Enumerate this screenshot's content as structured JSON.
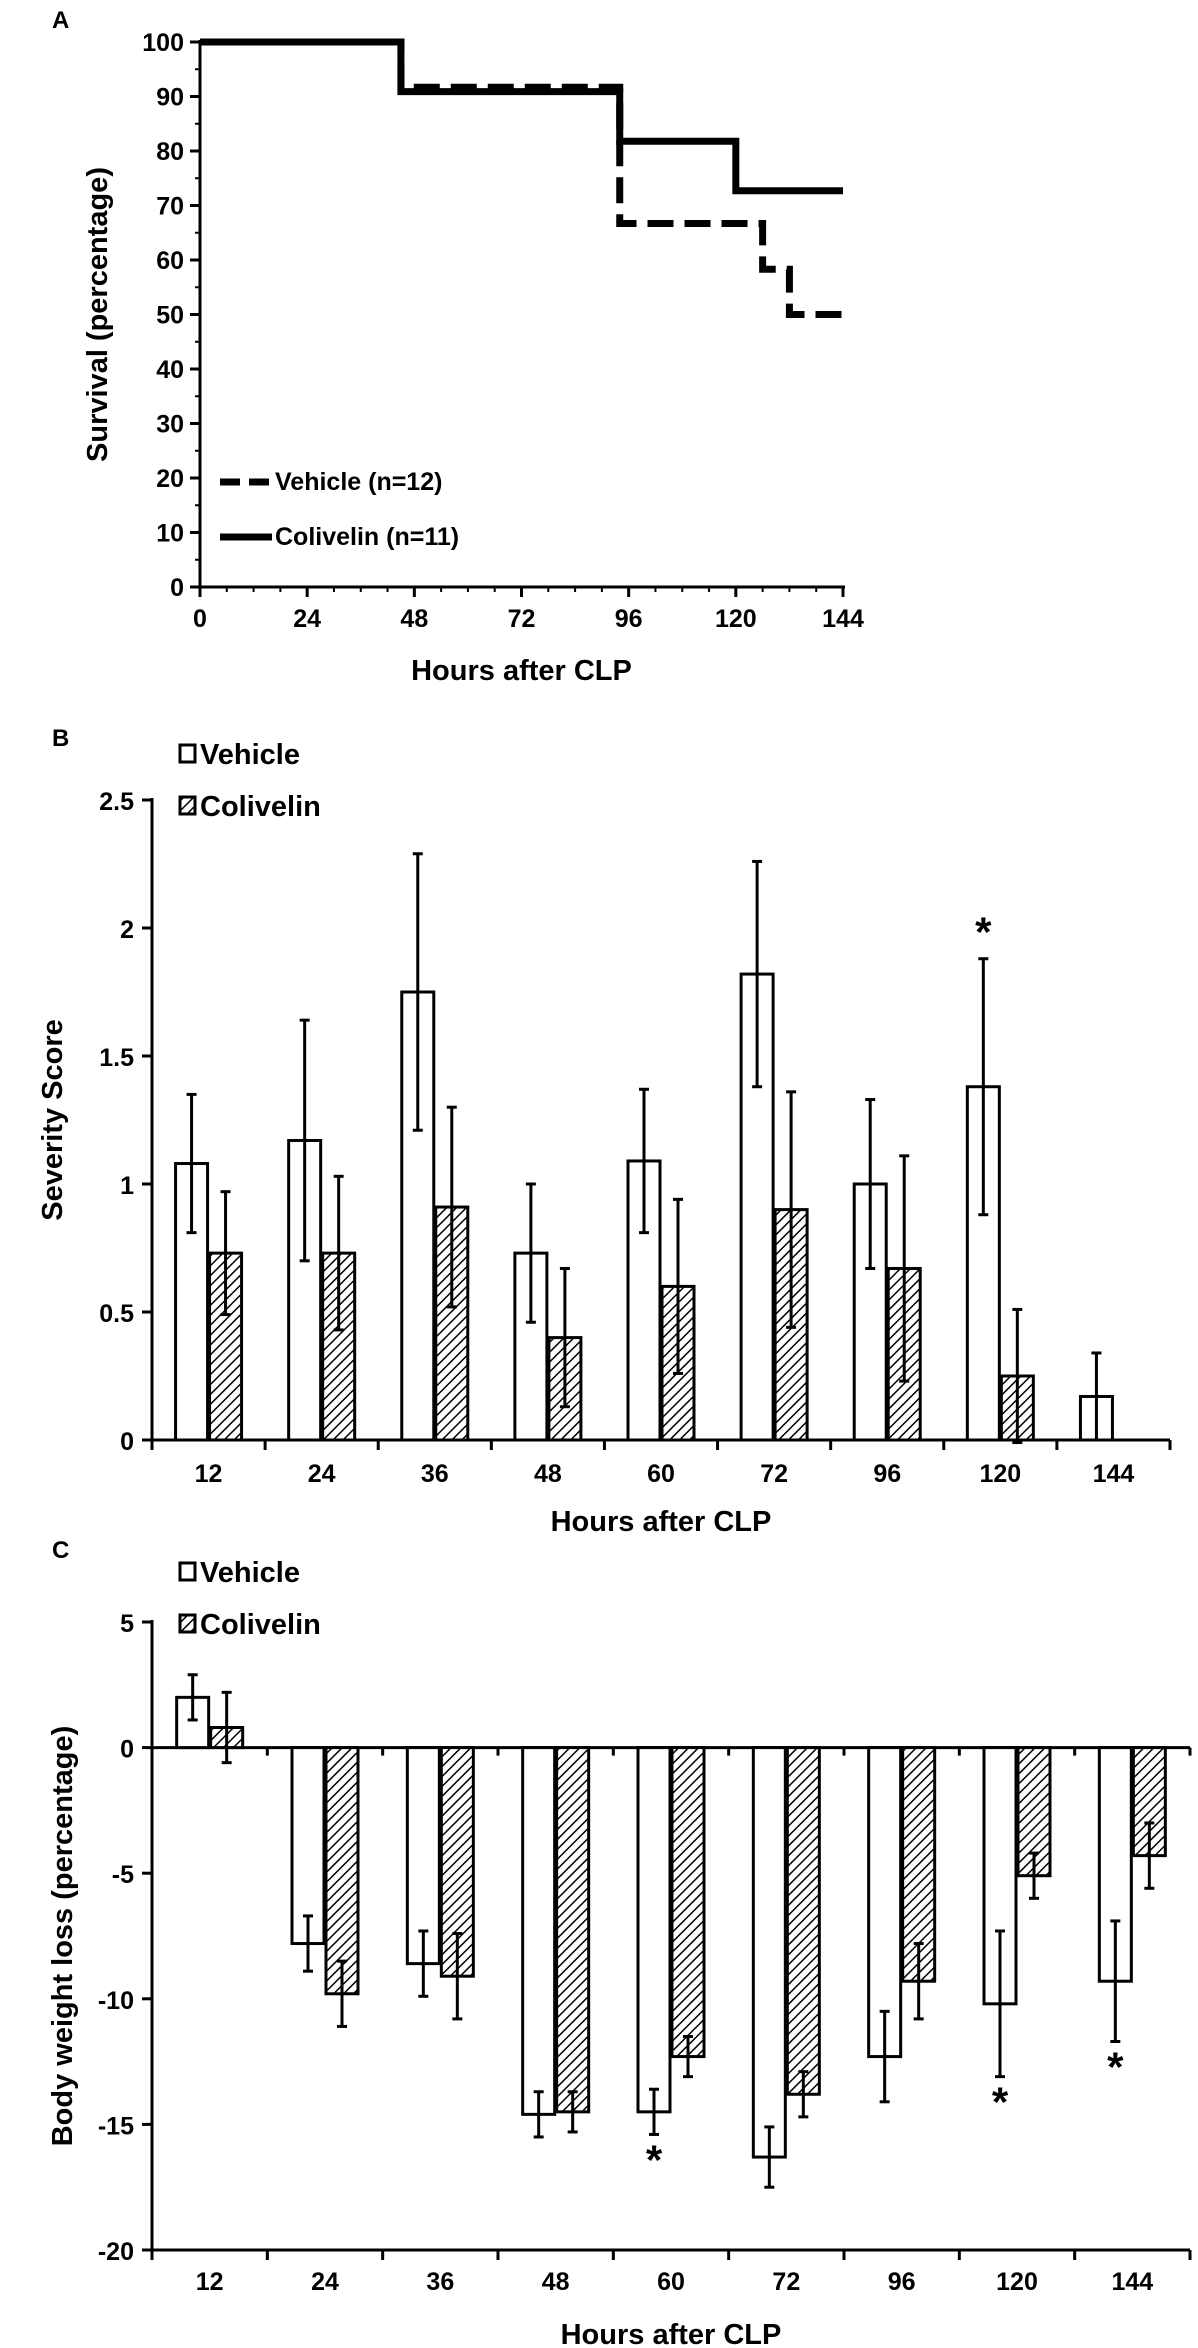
{
  "chart_data": [
    {
      "panel": "A",
      "type": "line",
      "step": true,
      "xlabel": "Hours after CLP",
      "ylabel": "Survival (percentage)",
      "xlim": [
        0,
        144
      ],
      "ylim": [
        0,
        100
      ],
      "xticks": [
        0,
        24,
        48,
        72,
        96,
        120,
        144
      ],
      "yticks": [
        0,
        10,
        20,
        30,
        40,
        50,
        60,
        70,
        80,
        90,
        100
      ],
      "legend_position": "bottom-left",
      "series": [
        {
          "name": "Vehicle (n=12)",
          "style": "dashed",
          "x": [
            0,
            45,
            45,
            94,
            94,
            126,
            126,
            132,
            132,
            144
          ],
          "y": [
            100,
            100,
            91.7,
            91.7,
            66.7,
            66.7,
            58.3,
            58.3,
            50,
            50
          ]
        },
        {
          "name": "Colivelin (n=11)",
          "style": "solid",
          "x": [
            0,
            45,
            45,
            94,
            94,
            120,
            120,
            144
          ],
          "y": [
            100,
            100,
            90.9,
            90.9,
            81.8,
            81.8,
            72.7,
            72.7
          ]
        }
      ]
    },
    {
      "panel": "B",
      "type": "bar",
      "xlabel": "Hours after CLP",
      "ylabel": "Severity Score",
      "ylim": [
        0,
        2.5
      ],
      "yticks": [
        "0",
        "0.5",
        "1",
        "1.5",
        "2",
        "2.5"
      ],
      "legend_position": "top-left",
      "categories": [
        "12",
        "24",
        "36",
        "48",
        "60",
        "72",
        "96",
        "120",
        "144"
      ],
      "series": [
        {
          "name": "Vehicle",
          "pattern": "open",
          "values": [
            1.08,
            1.17,
            1.75,
            0.73,
            1.09,
            1.82,
            1.0,
            1.38,
            0.17
          ],
          "errors": [
            0.27,
            0.47,
            0.54,
            0.27,
            0.28,
            0.44,
            0.33,
            0.5,
            0.17
          ]
        },
        {
          "name": "Colivelin",
          "pattern": "hatched",
          "values": [
            0.73,
            0.73,
            0.91,
            0.4,
            0.6,
            0.9,
            0.67,
            0.25,
            0
          ],
          "errors": [
            0.24,
            0.3,
            0.39,
            0.27,
            0.34,
            0.46,
            0.44,
            0.26,
            0
          ]
        }
      ],
      "annotations": [
        {
          "text": "*",
          "category": "120"
        }
      ]
    },
    {
      "panel": "C",
      "type": "bar",
      "xlabel": "Hours after CLP",
      "ylabel": "Body weight loss (percentage)",
      "ylim": [
        -20,
        5
      ],
      "yticks": [
        "-20",
        "-15",
        "-10",
        "-5",
        "0",
        "5"
      ],
      "legend_position": "top-left",
      "categories": [
        "12",
        "24",
        "36",
        "48",
        "60",
        "72",
        "96",
        "120",
        "144"
      ],
      "series": [
        {
          "name": "Vehicle",
          "pattern": "open",
          "values": [
            2.0,
            -7.8,
            -8.6,
            -14.6,
            -14.5,
            -16.3,
            -12.3,
            -10.2,
            -9.3
          ],
          "errors": [
            0.9,
            1.1,
            1.3,
            0.9,
            0.9,
            1.2,
            1.8,
            2.9,
            2.4
          ]
        },
        {
          "name": "Colivelin",
          "pattern": "hatched",
          "values": [
            0.8,
            -9.8,
            -9.1,
            -14.5,
            -12.3,
            -13.8,
            -9.3,
            -5.1,
            -4.3
          ],
          "errors": [
            1.4,
            1.3,
            1.7,
            0.8,
            0.8,
            0.9,
            1.5,
            0.9,
            1.3
          ]
        }
      ],
      "annotations": [
        {
          "text": "*",
          "category": "60"
        },
        {
          "text": "*",
          "category": "120"
        },
        {
          "text": "*",
          "category": "144"
        }
      ]
    }
  ]
}
